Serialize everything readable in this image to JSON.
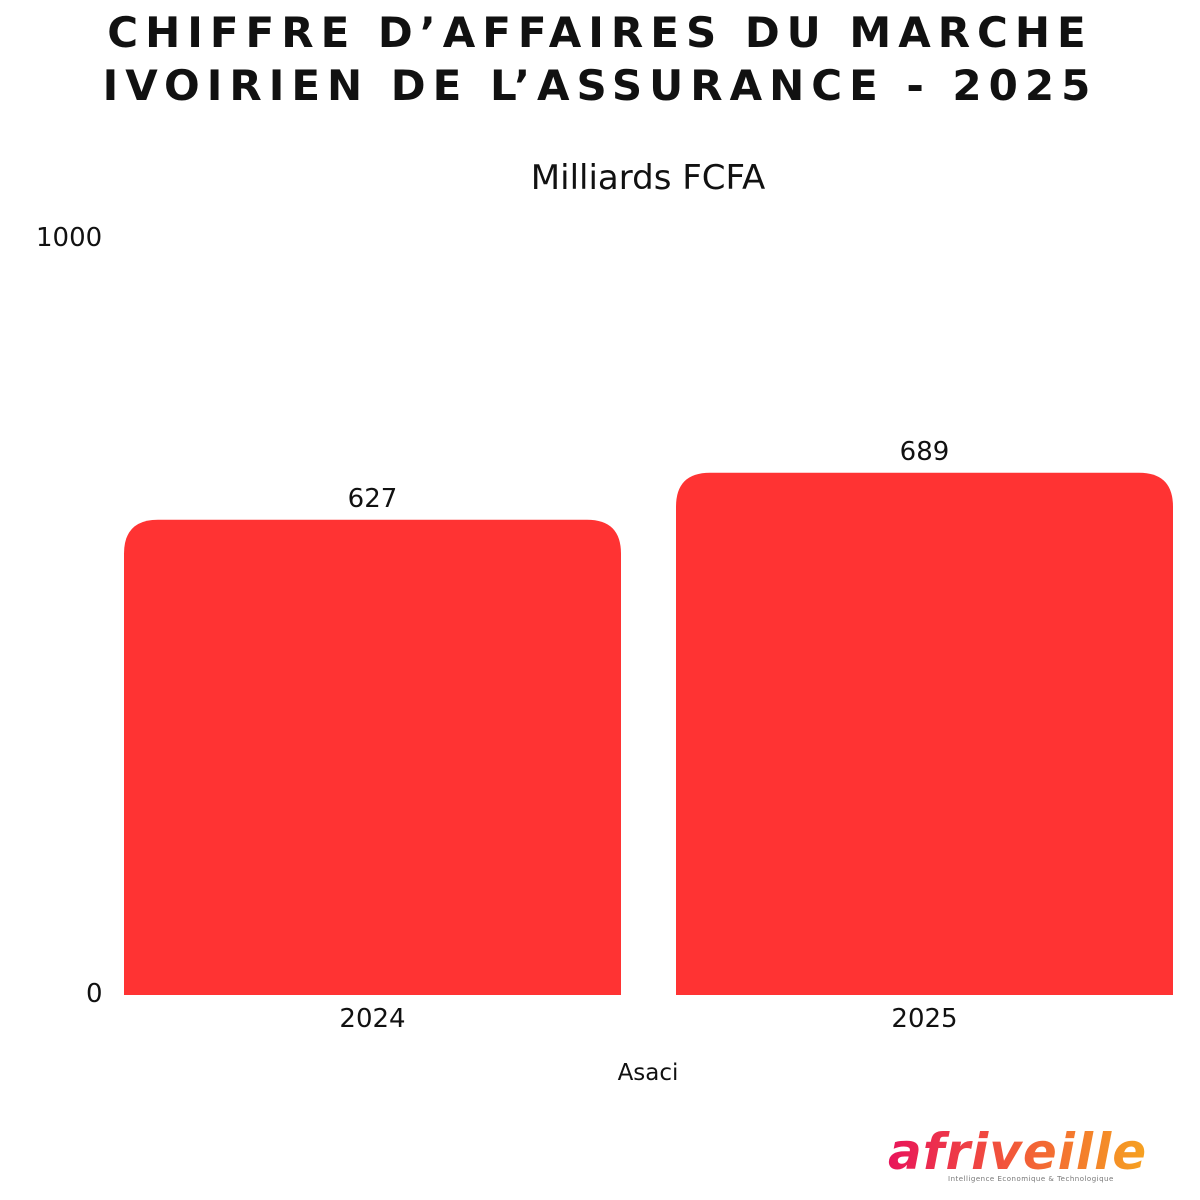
{
  "title_lines": [
    "CHIFFRE D’AFFAIRES DU MARCHE",
    "IVOIRIEN DE L’ASSURANCE - 2025"
  ],
  "chart_data": {
    "type": "bar",
    "title": "CHIFFRE D’AFFAIRES DU MARCHE IVOIRIEN DE L’ASSURANCE - 2025",
    "subtitle": "Milliards FCFA",
    "categories": [
      "2024",
      "2025"
    ],
    "series": [
      {
        "values": [
          627,
          689
        ],
        "color": "#ff3333"
      }
    ],
    "ylim": [
      0,
      1000
    ],
    "y_ticks": [
      "0",
      "1000"
    ],
    "xlabel": "Asaci",
    "ylabel": "",
    "grid": false,
    "data_labels": [
      "627",
      "689"
    ]
  },
  "logo": {
    "text": "afriveille",
    "tagline": "Intelligence Economique & Technologique",
    "colors": [
      "#e8145a",
      "#f2573a",
      "#f6a81e"
    ]
  }
}
